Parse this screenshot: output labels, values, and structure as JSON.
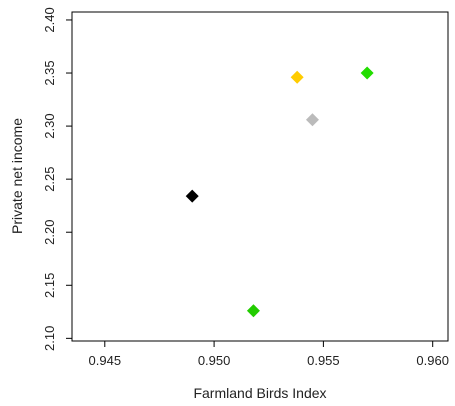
{
  "chart_data": {
    "type": "scatter",
    "title": "",
    "xlabel": "Farmland Birds Index",
    "ylabel": "Private net income",
    "xlim": [
      0.9435,
      0.9607
    ],
    "ylim": [
      2.0975,
      2.4075
    ],
    "xticks": [
      0.945,
      0.95,
      0.955,
      0.96
    ],
    "xtick_labels": [
      "0.945",
      "0.950",
      "0.955",
      "0.960"
    ],
    "yticks": [
      2.1,
      2.15,
      2.2,
      2.25,
      2.3,
      2.35,
      2.4
    ],
    "ytick_labels": [
      "2.10",
      "2.15",
      "2.20",
      "2.25",
      "2.30",
      "2.35",
      "2.40"
    ],
    "grid": false,
    "marker": "diamond",
    "points": [
      {
        "x": 0.949,
        "y": 2.234,
        "color": "#000000"
      },
      {
        "x": 0.9518,
        "y": 2.126,
        "color": "#22cc00"
      },
      {
        "x": 0.9538,
        "y": 2.346,
        "color": "#ffcc00"
      },
      {
        "x": 0.9545,
        "y": 2.306,
        "color": "#bbbbbb"
      },
      {
        "x": 0.957,
        "y": 2.35,
        "color": "#22dd00"
      }
    ]
  }
}
